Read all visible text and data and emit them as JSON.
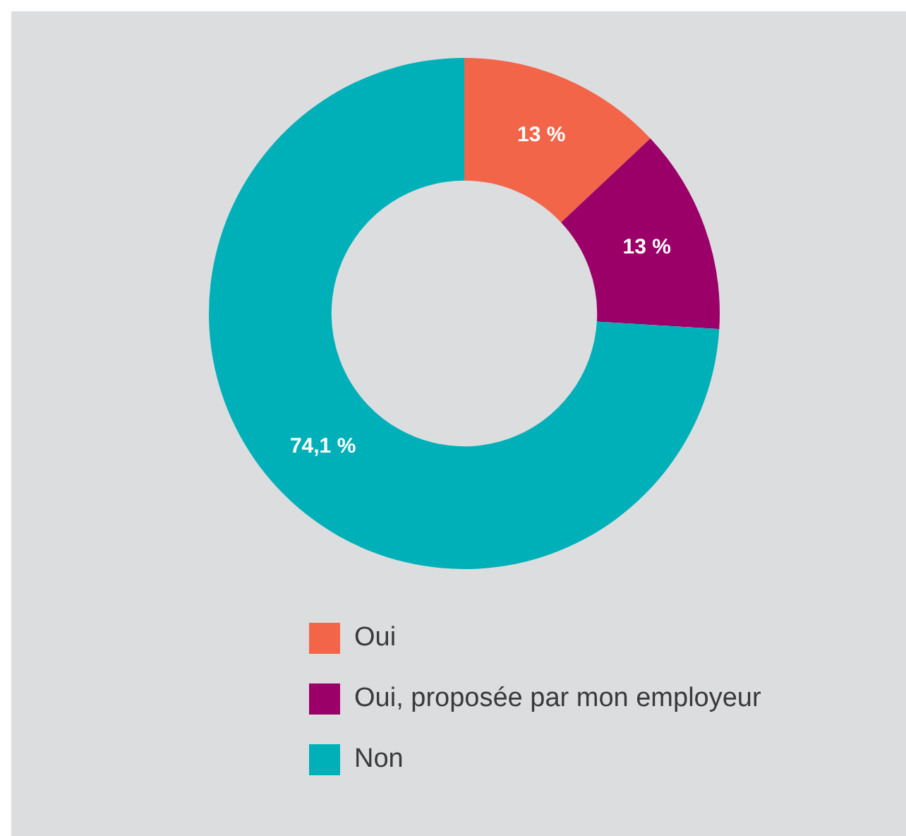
{
  "chart_data": {
    "type": "donut",
    "categories": [
      "Oui",
      "Oui, proposée par mon employeur",
      "Non"
    ],
    "values": [
      13,
      13,
      74.1
    ],
    "colors": [
      "#f26549",
      "#9b0068",
      "#00b0b9"
    ],
    "value_labels": [
      "13 %",
      "13 %",
      "74,1 %"
    ],
    "legend": "bottom"
  }
}
